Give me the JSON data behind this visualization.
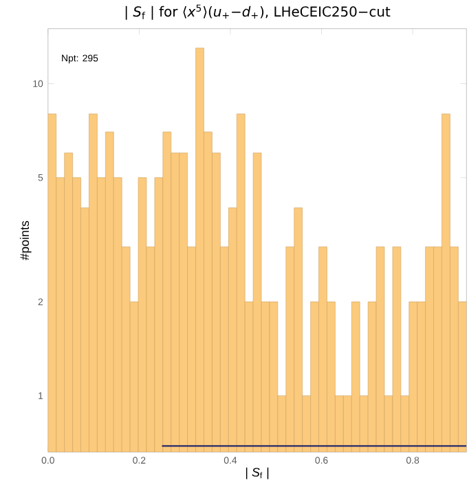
{
  "chart_data": {
    "type": "histogram",
    "title": "| *S*$_{f}$ | for ⟨*x*$^{5}$⟩(*u*$_{+}$−*d*$_{+}$), LHeCEIC250−cut",
    "xlabel": "| *S*$_{f}$ |",
    "ylabel": "#points",
    "annotations": [
      "Npt: 295"
    ],
    "bins": [
      0,
      0.018,
      0.036,
      0.054,
      0.072,
      0.09,
      0.108,
      0.126,
      0.144,
      0.162,
      0.18,
      0.198,
      0.216,
      0.234,
      0.252,
      0.27,
      0.288,
      0.306,
      0.324,
      0.342,
      0.36,
      0.378,
      0.396,
      0.414,
      0.432,
      0.45,
      0.468,
      0.486,
      0.504,
      0.522,
      0.54,
      0.558,
      0.576,
      0.594,
      0.612,
      0.63,
      0.648,
      0.666,
      0.684,
      0.702,
      0.72,
      0.738,
      0.756,
      0.774,
      0.792,
      0.81,
      0.828,
      0.846,
      0.864,
      0.882,
      0.9,
      0.918
    ],
    "values": [
      8,
      5,
      6,
      5,
      4,
      8,
      5,
      7,
      5,
      3,
      2,
      5,
      3,
      5,
      7,
      6,
      6,
      3,
      13,
      7,
      6,
      3,
      4,
      8,
      2,
      6,
      2,
      2,
      1,
      3,
      4,
      1,
      2,
      3,
      2,
      1,
      1,
      2,
      1,
      2,
      3,
      1,
      3,
      1,
      2,
      2,
      3,
      3,
      8,
      3,
      2
    ],
    "color": "#fcca7c",
    "series": [
      {
        "type": "line",
        "x": [
          0.25,
          0.918
        ],
        "values": [
          0.69,
          0.69
        ],
        "color": "#262a6b"
      }
    ],
    "log": "y",
    "xlim": [
      0,
      0.918
    ],
    "ylim": [
      0.66,
      15
    ],
    "xticks": [
      {
        "value": 0,
        "label": "0.0"
      },
      {
        "value": 0.2,
        "label": "0.2"
      },
      {
        "value": 0.4,
        "label": "0.4"
      },
      {
        "value": 0.6,
        "label": "0.6"
      },
      {
        "value": 0.8,
        "label": "0.8"
      }
    ],
    "yticks": [
      1,
      2,
      5,
      10
    ],
    "grid": false
  }
}
